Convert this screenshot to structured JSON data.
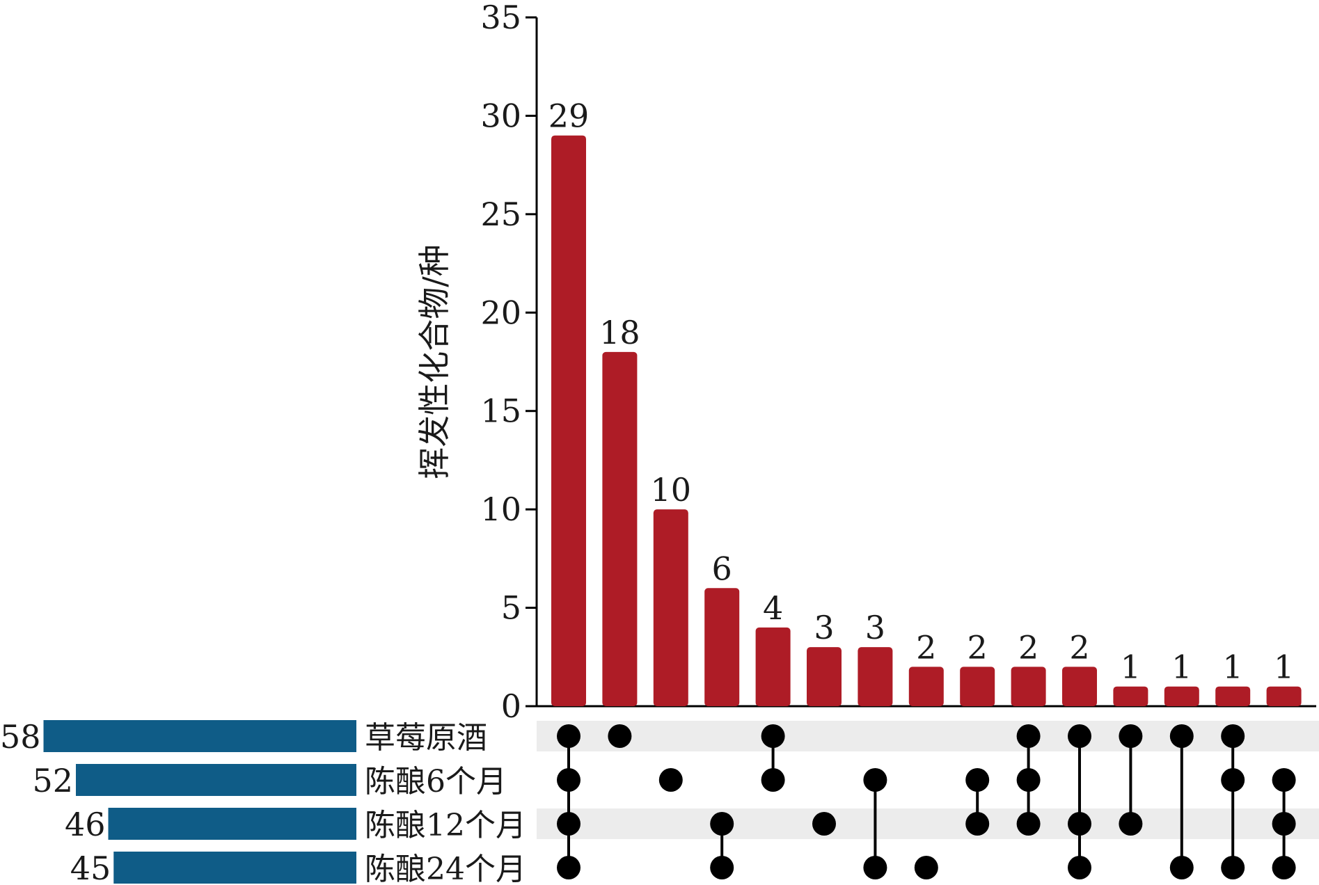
{
  "chart_data": {
    "type": "bar",
    "ylabel": "挥发性化合物/种",
    "yticks": [
      0,
      5,
      10,
      15,
      20,
      25,
      30,
      35
    ],
    "ylim": [
      0,
      35
    ],
    "bar_color": "#ae1c26",
    "set_color": "#0f5c87",
    "dot_color": "#000000",
    "row_shade": "#ececec",
    "sets": [
      {
        "name": "草莓原酒",
        "size": 58
      },
      {
        "name": "陈酿6个月",
        "size": 52
      },
      {
        "name": "陈酿12个月",
        "size": 46
      },
      {
        "name": "陈酿24个月",
        "size": 45
      }
    ],
    "intersections": [
      {
        "value": 29,
        "members": [
          0,
          1,
          2,
          3
        ]
      },
      {
        "value": 18,
        "members": [
          0
        ]
      },
      {
        "value": 10,
        "members": [
          1
        ]
      },
      {
        "value": 6,
        "members": [
          2,
          3
        ]
      },
      {
        "value": 4,
        "members": [
          0,
          1
        ]
      },
      {
        "value": 3,
        "members": [
          2
        ]
      },
      {
        "value": 3,
        "members": [
          1,
          3
        ]
      },
      {
        "value": 2,
        "members": [
          3
        ]
      },
      {
        "value": 2,
        "members": [
          1,
          2
        ]
      },
      {
        "value": 2,
        "members": [
          0,
          1,
          2
        ]
      },
      {
        "value": 2,
        "members": [
          0,
          2,
          3
        ]
      },
      {
        "value": 1,
        "members": [
          0,
          2
        ]
      },
      {
        "value": 1,
        "members": [
          0,
          3
        ]
      },
      {
        "value": 1,
        "members": [
          0,
          1,
          3
        ]
      },
      {
        "value": 1,
        "members": [
          1,
          2,
          3
        ]
      }
    ]
  }
}
